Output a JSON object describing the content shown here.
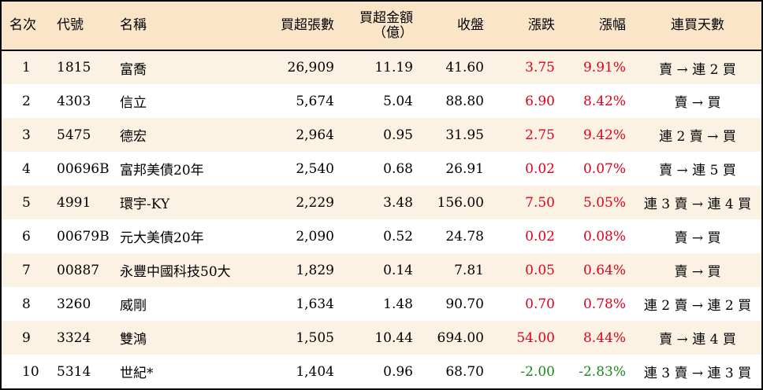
{
  "columns": [
    "名次",
    "代號",
    "名稱",
    "買超張數",
    "買超金額\n（億）",
    "收盤",
    "漲跌",
    "漲幅",
    "連買天數"
  ],
  "rows": [
    {
      "rank": "1",
      "code": "1815",
      "name": "富喬",
      "shares": "26,909",
      "amount": "11.19",
      "close": "41.60",
      "change": "3.75",
      "pct": "9.91%",
      "streak": "賣 → 連 2 買",
      "trend": "up"
    },
    {
      "rank": "2",
      "code": "4303",
      "name": "信立",
      "shares": "5,674",
      "amount": "5.04",
      "close": "88.80",
      "change": "6.90",
      "pct": "8.42%",
      "streak": "賣 → 買",
      "trend": "up"
    },
    {
      "rank": "3",
      "code": "5475",
      "name": "德宏",
      "shares": "2,964",
      "amount": "0.95",
      "close": "31.95",
      "change": "2.75",
      "pct": "9.42%",
      "streak": "連 2 賣 → 買",
      "trend": "up"
    },
    {
      "rank": "4",
      "code": "00696B",
      "name": "富邦美債20年",
      "shares": "2,540",
      "amount": "0.68",
      "close": "26.91",
      "change": "0.02",
      "pct": "0.07%",
      "streak": "賣 → 連 5 買",
      "trend": "up"
    },
    {
      "rank": "5",
      "code": "4991",
      "name": "環宇-KY",
      "shares": "2,229",
      "amount": "3.48",
      "close": "156.00",
      "change": "7.50",
      "pct": "5.05%",
      "streak": "連 3 賣 → 連 4 買",
      "trend": "up"
    },
    {
      "rank": "6",
      "code": "00679B",
      "name": "元大美債20年",
      "shares": "2,090",
      "amount": "0.52",
      "close": "24.78",
      "change": "0.02",
      "pct": "0.08%",
      "streak": "賣 → 買",
      "trend": "up"
    },
    {
      "rank": "7",
      "code": "00887",
      "name": "永豐中國科技50大",
      "shares": "1,829",
      "amount": "0.14",
      "close": "7.81",
      "change": "0.05",
      "pct": "0.64%",
      "streak": "賣 → 買",
      "trend": "up"
    },
    {
      "rank": "8",
      "code": "3260",
      "name": "威剛",
      "shares": "1,634",
      "amount": "1.48",
      "close": "90.70",
      "change": "0.70",
      "pct": "0.78%",
      "streak": "連 2 賣 → 連 2 買",
      "trend": "up"
    },
    {
      "rank": "9",
      "code": "3324",
      "name": "雙鴻",
      "shares": "1,505",
      "amount": "10.44",
      "close": "694.00",
      "change": "54.00",
      "pct": "8.44%",
      "streak": "賣 → 連 4 買",
      "trend": "up"
    },
    {
      "rank": "10",
      "code": "5314",
      "name": "世紀*",
      "shares": "1,404",
      "amount": "0.96",
      "close": "68.70",
      "change": "-2.00",
      "pct": "-2.83%",
      "streak": "連 3 賣 → 連 3 買",
      "trend": "down"
    }
  ],
  "colors": {
    "header_bg": "#fbe5c8",
    "stripe_bg": "#fcf2e3",
    "up": "#e0001b",
    "down": "#1a8a1a"
  }
}
